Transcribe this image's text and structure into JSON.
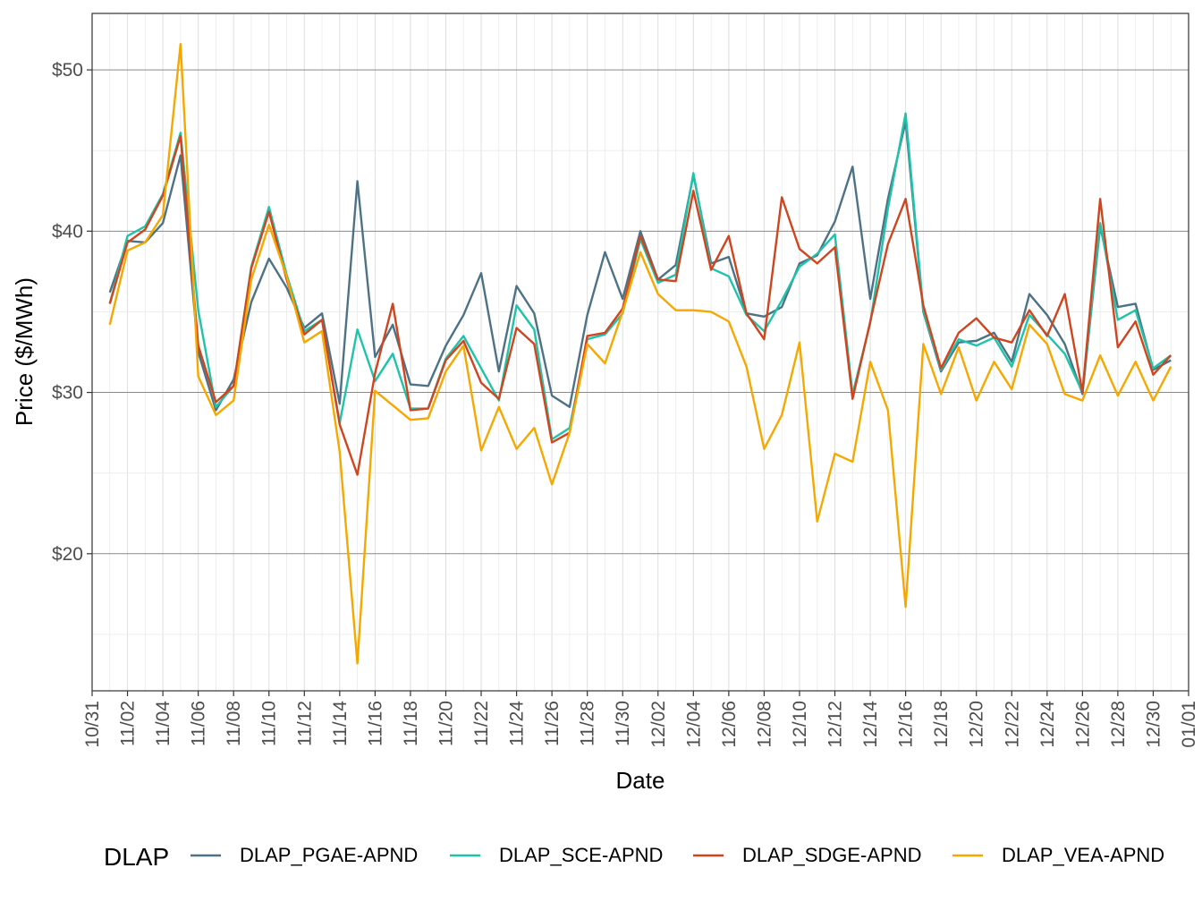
{
  "chart_data": {
    "type": "line",
    "xlabel": "Date",
    "ylabel": "Price ($/MWh)",
    "x_tick_labels": [
      "10/31",
      "11/02",
      "11/04",
      "11/06",
      "11/08",
      "11/10",
      "11/12",
      "11/14",
      "11/16",
      "11/18",
      "11/20",
      "11/22",
      "11/24",
      "11/26",
      "11/28",
      "11/30",
      "12/02",
      "12/04",
      "12/06",
      "12/08",
      "12/10",
      "12/12",
      "12/14",
      "12/16",
      "12/18",
      "12/20",
      "12/22",
      "12/24",
      "12/26",
      "12/28",
      "12/30",
      "01/01"
    ],
    "y_ticks": [
      20,
      30,
      40,
      50
    ],
    "y_tick_labels": [
      "$20",
      "$30",
      "$40",
      "$50"
    ],
    "ylim": [
      11.5,
      53.5
    ],
    "x_range_days": [
      0,
      62
    ],
    "grid": true,
    "legend": {
      "title": "DLAP",
      "position": "bottom"
    },
    "dates": [
      "11/01",
      "11/02",
      "11/03",
      "11/04",
      "11/05",
      "11/06",
      "11/07",
      "11/08",
      "11/09",
      "11/10",
      "11/11",
      "11/12",
      "11/13",
      "11/14",
      "11/15",
      "11/16",
      "11/17",
      "11/18",
      "11/19",
      "11/20",
      "11/21",
      "11/22",
      "11/23",
      "11/24",
      "11/25",
      "11/26",
      "11/27",
      "11/28",
      "11/29",
      "11/30",
      "12/01",
      "12/02",
      "12/03",
      "12/04",
      "12/05",
      "12/06",
      "12/07",
      "12/08",
      "12/09",
      "12/10",
      "12/11",
      "12/12",
      "12/13",
      "12/14",
      "12/15",
      "12/16",
      "12/17",
      "12/18",
      "12/19",
      "12/20",
      "12/21",
      "12/22",
      "12/23",
      "12/24",
      "12/25",
      "12/26",
      "12/27",
      "12/28",
      "12/29",
      "12/30",
      "12/31"
    ],
    "series": [
      {
        "name": "DLAP_PGAE-APND",
        "color": "#4e7285",
        "values": [
          36.2,
          39.4,
          39.3,
          40.5,
          44.7,
          32.5,
          28.9,
          30.8,
          35.6,
          38.3,
          36.5,
          34.0,
          34.9,
          29.3,
          43.1,
          32.2,
          34.2,
          30.5,
          30.4,
          32.9,
          34.8,
          37.4,
          31.3,
          36.6,
          34.9,
          29.8,
          29.1,
          34.8,
          38.7,
          35.8,
          40.0,
          37.0,
          37.9,
          43.5,
          38.0,
          38.4,
          34.9,
          34.7,
          35.3,
          38.0,
          38.5,
          40.6,
          44.0,
          35.8,
          42.0,
          46.8,
          35.0,
          31.3,
          33.1,
          33.2,
          33.7,
          31.9,
          36.1,
          34.8,
          33.0,
          29.9,
          40.3,
          35.3,
          35.5,
          31.4,
          32.0
        ]
      },
      {
        "name": "DLAP_SCE-APND",
        "color": "#1fc3aa",
        "values": [
          35.5,
          39.7,
          40.3,
          42.3,
          46.1,
          35.1,
          29.1,
          30.4,
          37.8,
          41.5,
          37.3,
          33.8,
          34.5,
          28.1,
          33.9,
          30.7,
          32.4,
          29.0,
          29.0,
          32.1,
          33.5,
          31.5,
          29.5,
          35.4,
          33.9,
          27.1,
          27.8,
          33.3,
          33.6,
          34.9,
          39.5,
          36.8,
          37.3,
          43.6,
          37.7,
          37.2,
          34.8,
          33.8,
          35.7,
          37.8,
          38.6,
          39.8,
          29.9,
          34.3,
          41.4,
          47.3,
          35.1,
          31.4,
          33.3,
          32.9,
          33.4,
          31.6,
          34.8,
          33.6,
          32.4,
          30.0,
          40.5,
          34.5,
          35.1,
          31.5,
          32.3
        ]
      },
      {
        "name": "DLAP_SDGE-APND",
        "color": "#d0441e",
        "values": [
          35.5,
          39.3,
          40.1,
          42.2,
          45.9,
          32.9,
          29.4,
          30.4,
          37.7,
          41.2,
          37.0,
          33.6,
          34.5,
          28.0,
          24.9,
          31.2,
          35.5,
          28.9,
          29.0,
          32.0,
          33.2,
          30.6,
          29.6,
          34.0,
          33.0,
          26.9,
          27.5,
          33.5,
          33.7,
          35.2,
          39.7,
          37.0,
          36.9,
          42.5,
          37.6,
          39.7,
          34.9,
          33.3,
          42.1,
          38.9,
          38.0,
          39.0,
          29.6,
          34.4,
          39.2,
          42.0,
          35.4,
          31.5,
          33.7,
          34.6,
          33.4,
          33.1,
          35.1,
          33.5,
          36.1,
          30.0,
          42.0,
          32.8,
          34.4,
          31.1,
          32.3
        ]
      },
      {
        "name": "DLAP_VEA-APND",
        "color": "#f5a800",
        "values": [
          34.2,
          38.8,
          39.3,
          41.0,
          51.6,
          31.0,
          28.6,
          29.5,
          37.0,
          40.4,
          37.2,
          33.1,
          33.8,
          26.3,
          13.2,
          30.1,
          29.2,
          28.3,
          28.4,
          31.3,
          32.9,
          26.4,
          29.1,
          26.5,
          27.8,
          24.3,
          27.5,
          33.0,
          31.8,
          35.0,
          38.7,
          36.1,
          35.1,
          35.1,
          35.0,
          34.4,
          31.6,
          26.5,
          28.6,
          33.1,
          22.0,
          26.2,
          25.7,
          31.9,
          28.9,
          16.7,
          33.0,
          29.9,
          32.8,
          29.5,
          31.9,
          30.2,
          34.2,
          33.0,
          29.9,
          29.5,
          32.3,
          29.8,
          31.9,
          29.5,
          31.6
        ]
      }
    ]
  }
}
